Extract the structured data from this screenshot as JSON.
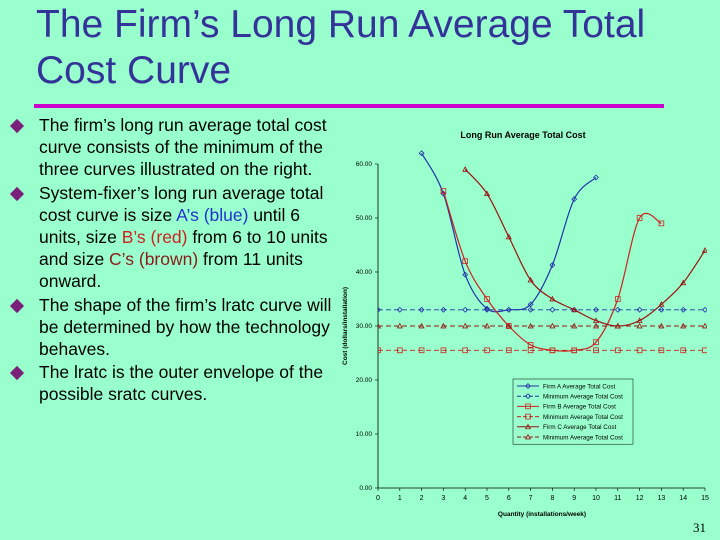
{
  "title": "The Firm’s Long Run Average Total Cost Curve",
  "bullets": [
    {
      "parts": [
        {
          "text": "The firm’s long run average total cost curve consists of the minimum of the three curves illustrated on the right.",
          "style": ""
        }
      ]
    },
    {
      "parts": [
        {
          "text": "System-fixer’s long run average total cost curve is size ",
          "style": ""
        },
        {
          "text": "A’s (blue)",
          "style": "blue"
        },
        {
          "text": " until 6 units, size ",
          "style": ""
        },
        {
          "text": "B’s (red)",
          "style": "red"
        },
        {
          "text": " from 6 to 10 units and size ",
          "style": ""
        },
        {
          "text": "C’s (brown)",
          "style": "brown"
        },
        {
          "text": " from 11 units onward.",
          "style": ""
        }
      ]
    },
    {
      "parts": [
        {
          "text": "The shape of the firm’s lratc curve will be determined by how the technology behaves.",
          "style": ""
        }
      ]
    },
    {
      "parts": [
        {
          "text": "The lratc is the outer envelope of the possible sratc curves.",
          "style": ""
        }
      ]
    }
  ],
  "page_number": "31",
  "colors": {
    "background": "#99ffcc",
    "title": "#333399",
    "title_rule": "#cc00cc",
    "bullet_mark": "#7a1f7a",
    "firm_a": "#2233aa",
    "firm_b": "#cc2222",
    "firm_c": "#991111"
  },
  "chart_data": {
    "type": "line",
    "title": "Long Run Average Total Cost",
    "xlabel": "Quantity (installations/week)",
    "ylabel": "Cost (dollars/installation)",
    "xlim": [
      0,
      15
    ],
    "ylim": [
      0,
      60
    ],
    "x_ticks": [
      0,
      1,
      2,
      3,
      4,
      5,
      6,
      7,
      8,
      9,
      10,
      11,
      12,
      13,
      14,
      15
    ],
    "y_ticks": [
      0,
      10,
      20,
      30,
      40,
      50,
      60
    ],
    "y_tick_labels": [
      "0.00",
      "10.00",
      "20.00",
      "30.00",
      "40.00",
      "50.00",
      "60.00"
    ],
    "grid": false,
    "legend_position": "bottom-right",
    "series": [
      {
        "name": "Firm A Average Total Cost",
        "color": "#2233aa",
        "marker": "diamond",
        "dash": "solid",
        "x": [
          2,
          3,
          4,
          5,
          6,
          7,
          8,
          9,
          10
        ],
        "y": [
          62,
          54.5,
          39.5,
          33.2,
          33.0,
          34.0,
          41.3,
          53.5,
          57.5
        ]
      },
      {
        "name": "Minimum Average Total Cost",
        "color": "#2233aa",
        "marker": "diamond",
        "dash": "dashed",
        "x": [
          0,
          1,
          2,
          3,
          4,
          5,
          6,
          7,
          8,
          9,
          10,
          11,
          12,
          13,
          14,
          15
        ],
        "y": [
          33,
          33,
          33,
          33,
          33,
          33,
          33,
          33,
          33,
          33,
          33,
          33,
          33,
          33,
          33,
          33
        ]
      },
      {
        "name": "Firm B Average Total Cost",
        "color": "#cc2222",
        "marker": "square",
        "dash": "solid",
        "x": [
          3,
          4,
          5,
          6,
          7,
          8,
          9,
          10,
          11,
          12,
          13
        ],
        "y": [
          55,
          42,
          35,
          30,
          26.5,
          25.5,
          25.5,
          27,
          35,
          50,
          49
        ]
      },
      {
        "name": "Minimum Average Total Cost",
        "color": "#cc2222",
        "marker": "square",
        "dash": "dashed",
        "x": [
          0,
          1,
          2,
          3,
          4,
          5,
          6,
          7,
          8,
          9,
          10,
          11,
          12,
          13,
          14,
          15
        ],
        "y": [
          25.5,
          25.5,
          25.5,
          25.5,
          25.5,
          25.5,
          25.5,
          25.5,
          25.5,
          25.5,
          25.5,
          25.5,
          25.5,
          25.5,
          25.5,
          25.5
        ]
      },
      {
        "name": "Firm C Average Total Cost",
        "color": "#991111",
        "marker": "triangle",
        "dash": "solid",
        "x": [
          4,
          5,
          6,
          7,
          8,
          9,
          10,
          11,
          12,
          13,
          14,
          15
        ],
        "y": [
          59,
          54.5,
          46.5,
          38.5,
          35,
          33,
          31,
          30,
          31,
          34,
          38,
          44
        ]
      },
      {
        "name": "Minimum Average Total Cost",
        "color": "#991111",
        "marker": "triangle",
        "dash": "dashed",
        "x": [
          0,
          1,
          2,
          3,
          4,
          5,
          6,
          7,
          8,
          9,
          10,
          11,
          12,
          13,
          14,
          15
        ],
        "y": [
          30,
          30,
          30,
          30,
          30,
          30,
          30,
          30,
          30,
          30,
          30,
          30,
          30,
          30,
          30,
          30
        ]
      }
    ]
  }
}
